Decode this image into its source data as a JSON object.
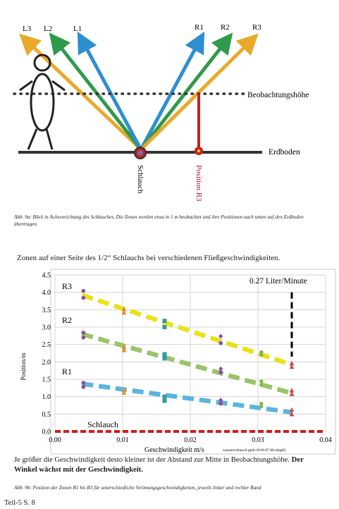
{
  "figure_a": {
    "ray_labels": [
      "L3",
      "L2",
      "L1",
      "R1",
      "R2",
      "R3"
    ],
    "observation_label": "Beobachtungshöhe",
    "ground_label": "Erdboden",
    "hose_label": "Schlauch",
    "position_label": "Position R3",
    "caption": "Abb. 9a: Blick in Achsenrichtung des Schlauches. Die Zonen werden etwa in 1 m beobachtet und ihre Positionen nach unten auf den Erdboden übertragen."
  },
  "section_heading": "Zonen auf einer Seite des 1/2“ Schlauchs bei verschiedenen Fließgeschwindigkeiten.",
  "chart_data": {
    "type": "scatter",
    "xlabel": "Geschwindigkeit m/s",
    "ylabel": "Position/m",
    "xlim": [
      0,
      0.04
    ],
    "ylim": [
      0,
      4.5
    ],
    "x_ticks": [
      "0.00",
      "0.01",
      "0.02",
      "0.03",
      "0.04"
    ],
    "y_ticks": [
      "0.0",
      "0.5",
      "1.0",
      "1.5",
      "2.0",
      "2.5",
      "3.0",
      "3.5",
      "4.0",
      "4.5"
    ],
    "grid": true,
    "annotation": "0.27 Liter/Minute",
    "annotation_x": 0.035,
    "source_note": "wasserschlauch-gelb-2018-07-08-diag05",
    "series": [
      {
        "name": "R3",
        "color": "#e8e21c",
        "line": [
          [
            0.004,
            3.92
          ],
          [
            0.035,
            1.92
          ]
        ],
        "points": [
          [
            0.0042,
            4.04,
            "#8a4c9e",
            "c"
          ],
          [
            0.0042,
            3.84,
            "#8a4c9e",
            "c"
          ],
          [
            0.0102,
            3.52,
            "#e58a2e",
            "t"
          ],
          [
            0.0102,
            3.42,
            "#e58a2e",
            "t"
          ],
          [
            0.0162,
            3.18,
            "#2e9ca5",
            "s"
          ],
          [
            0.0162,
            3.0,
            "#2e9ca5",
            "s"
          ],
          [
            0.0245,
            2.74,
            "#8a4c9e",
            "d"
          ],
          [
            0.0245,
            2.54,
            "#8a4c9e",
            "c"
          ],
          [
            0.0305,
            2.28,
            "#8ab84a",
            "c"
          ],
          [
            0.0305,
            2.2,
            "#8ab84a",
            "c"
          ],
          [
            0.035,
            1.96,
            "#c0504d",
            "t"
          ],
          [
            0.035,
            1.86,
            "#c0504d",
            "t"
          ]
        ]
      },
      {
        "name": "R2",
        "color": "#9bc36a",
        "line": [
          [
            0.004,
            2.8
          ],
          [
            0.035,
            1.1
          ]
        ],
        "points": [
          [
            0.0042,
            2.84,
            "#8a4c9e",
            "c"
          ],
          [
            0.0042,
            2.7,
            "#8a4c9e",
            "c"
          ],
          [
            0.0102,
            2.42,
            "#e58a2e",
            "t"
          ],
          [
            0.0102,
            2.34,
            "#e58a2e",
            "t"
          ],
          [
            0.0162,
            2.22,
            "#2e9ca5",
            "s"
          ],
          [
            0.0162,
            2.1,
            "#2e9ca5",
            "s"
          ],
          [
            0.0245,
            1.8,
            "#8a4c9e",
            "d"
          ],
          [
            0.0245,
            1.7,
            "#8a4c9e",
            "c"
          ],
          [
            0.0305,
            1.44,
            "#8ab84a",
            "c"
          ],
          [
            0.0305,
            1.34,
            "#8ab84a",
            "c"
          ],
          [
            0.035,
            1.18,
            "#c0504d",
            "t"
          ],
          [
            0.035,
            1.08,
            "#c0504d",
            "t"
          ]
        ]
      },
      {
        "name": "R1",
        "color": "#5ab4e0",
        "line": [
          [
            0.004,
            1.37
          ],
          [
            0.035,
            0.55
          ]
        ],
        "points": [
          [
            0.0042,
            1.4,
            "#8a4c9e",
            "c"
          ],
          [
            0.0042,
            1.28,
            "#8a4c9e",
            "c"
          ],
          [
            0.0102,
            1.2,
            "#e58a2e",
            "t"
          ],
          [
            0.0102,
            1.12,
            "#e58a2e",
            "t"
          ],
          [
            0.0162,
            1.0,
            "#2e9ca5",
            "s"
          ],
          [
            0.0162,
            0.88,
            "#2e9ca5",
            "s"
          ],
          [
            0.0245,
            0.9,
            "#8a4c9e",
            "d"
          ],
          [
            0.0245,
            0.8,
            "#8a4c9e",
            "c"
          ],
          [
            0.0305,
            0.8,
            "#8ab84a",
            "c"
          ],
          [
            0.0305,
            0.72,
            "#8ab84a",
            "c"
          ],
          [
            0.035,
            0.62,
            "#c0504d",
            "t"
          ],
          [
            0.035,
            0.5,
            "#c0504d",
            "t"
          ]
        ]
      },
      {
        "name": "Schlauch",
        "color": "#d01c1c",
        "line": [
          [
            0.0,
            0.0
          ],
          [
            0.04,
            0.0
          ]
        ],
        "points": []
      }
    ]
  },
  "paragraph": {
    "text": "Je größer die Geschwindigkeit desto kleiner ist der Abstand zur Mitte in Beobachtungshöhe.",
    "bold": "Der Winkel wächst mit der Geschwindigkeit."
  },
  "figure_b_caption": "Abb. 9b: Position der Zonen R1 bis R3 für unterschiedliche Strömungsgeschwindigkeiten, jeweils linker und rechter Rand",
  "footer": "Teil-5  S. 8"
}
